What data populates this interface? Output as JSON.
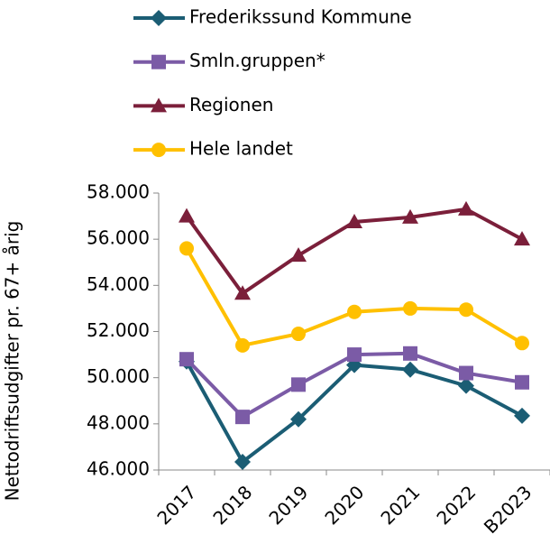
{
  "chart_data": {
    "type": "line",
    "y_label": "Nettodriftsudgifter pr. 67+ årig",
    "categories": [
      "2017",
      "2018",
      "2019",
      "2020",
      "2021",
      "2022",
      "B2023"
    ],
    "series": [
      {
        "name": "Frederikssund Kommune",
        "color": "#1b5d74",
        "marker": "diamond",
        "values": [
          50700,
          46350,
          48200,
          50550,
          50350,
          49650,
          48350
        ]
      },
      {
        "name": "Smln.gruppen*",
        "color": "#7b5ba6",
        "marker": "square",
        "values": [
          50800,
          48300,
          49700,
          51000,
          51050,
          50200,
          49800
        ]
      },
      {
        "name": "Regionen",
        "color": "#7b1f3a",
        "marker": "triangle",
        "values": [
          57000,
          53650,
          55300,
          56750,
          56950,
          57300,
          56000
        ]
      },
      {
        "name": "Hele landet",
        "color": "#ffc000",
        "marker": "circle",
        "values": [
          55600,
          51400,
          51900,
          52850,
          53000,
          52950,
          51500
        ]
      }
    ],
    "ylim": [
      46000,
      58000
    ],
    "yticks": [
      {
        "value": 46000,
        "label": "46.000"
      },
      {
        "value": 48000,
        "label": "48.000"
      },
      {
        "value": 50000,
        "label": "50.000"
      },
      {
        "value": 52000,
        "label": "52.000"
      },
      {
        "value": 54000,
        "label": "54.000"
      },
      {
        "value": 56000,
        "label": "56.000"
      },
      {
        "value": 58000,
        "label": "58.000"
      }
    ],
    "legend": "top"
  }
}
